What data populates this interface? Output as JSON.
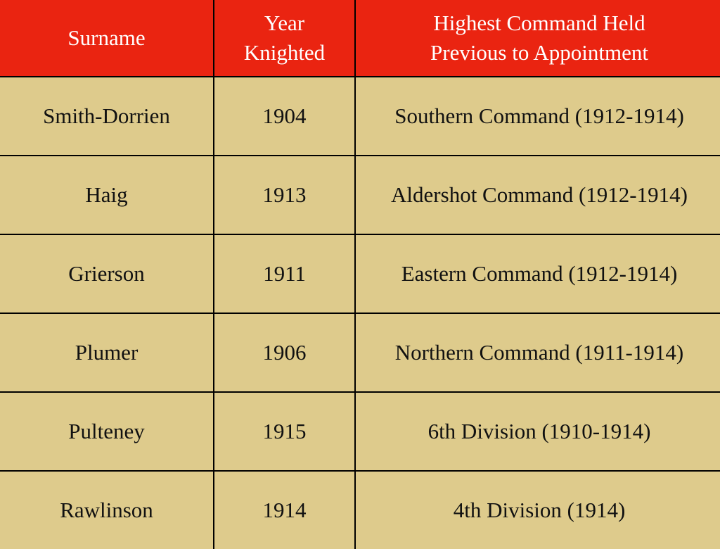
{
  "table": {
    "headers": [
      "Surname",
      "Year\nKnighted",
      "Highest Command Held\nPrevious to Appointment"
    ],
    "rows": [
      [
        "Smith-Dorrien",
        "1904",
        "Southern Command (1912-1914)"
      ],
      [
        "Haig",
        "1913",
        "Aldershot Command (1912-1914)"
      ],
      [
        "Grierson",
        "1911",
        "Eastern Command (1912-1914)"
      ],
      [
        "Plumer",
        "1906",
        "Northern Command (1911-1914)"
      ],
      [
        "Pulteney",
        "1915",
        "6th Division (1910-1914)"
      ],
      [
        "Rawlinson",
        "1914",
        "4th Division (1914)"
      ]
    ],
    "colors": {
      "header_bg": "#ea2411",
      "body_bg": "#decb8c",
      "border": "#000000"
    }
  }
}
